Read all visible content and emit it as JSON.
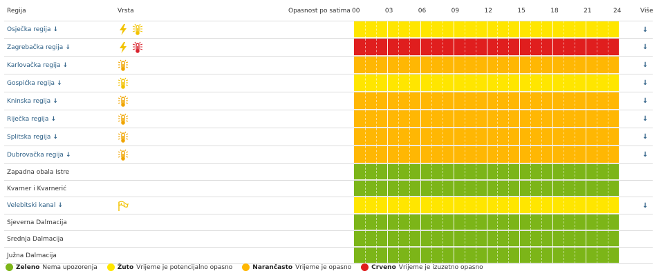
{
  "header": {
    "region_col": "Regija",
    "type_col": "Vrsta",
    "hourly_col": "Opasnost po satima",
    "hours": [
      "00",
      "03",
      "06",
      "09",
      "12",
      "15",
      "18",
      "21",
      "24"
    ],
    "more_col": "Više"
  },
  "colors": {
    "green": "#7cb518",
    "yellow": "#ffe600",
    "orange": "#ffb703",
    "red": "#e01e1e",
    "icon_yellow": "#f2c200",
    "icon_orange": "#f0a500",
    "icon_red": "#d9232e"
  },
  "more_arrow": "↓",
  "rows": [
    {
      "name": "Osječka regija",
      "link": true,
      "level": "yellow",
      "icons": [
        {
          "type": "lightning-icon",
          "color": "icon_yellow"
        },
        {
          "type": "thermometer-icon",
          "color": "icon_yellow"
        }
      ]
    },
    {
      "name": "Zagrebačka regija",
      "link": true,
      "level": "red",
      "icons": [
        {
          "type": "lightning-icon",
          "color": "icon_yellow"
        },
        {
          "type": "thermometer-icon",
          "color": "icon_red"
        }
      ]
    },
    {
      "name": "Karlovačka regija",
      "link": true,
      "level": "orange",
      "icons": [
        {
          "type": "thermometer-icon",
          "color": "icon_orange"
        }
      ]
    },
    {
      "name": "Gospićka regija",
      "link": true,
      "level": "yellow",
      "icons": [
        {
          "type": "thermometer-icon",
          "color": "icon_yellow"
        }
      ]
    },
    {
      "name": "Kninska regija",
      "link": true,
      "level": "orange",
      "icons": [
        {
          "type": "thermometer-icon",
          "color": "icon_orange"
        }
      ]
    },
    {
      "name": "Riječka regija",
      "link": true,
      "level": "orange",
      "icons": [
        {
          "type": "thermometer-icon",
          "color": "icon_orange"
        }
      ]
    },
    {
      "name": "Splitska regija",
      "link": true,
      "level": "orange",
      "icons": [
        {
          "type": "thermometer-icon",
          "color": "icon_orange"
        }
      ]
    },
    {
      "name": "Dubrovačka regija",
      "link": true,
      "level": "orange",
      "icons": [
        {
          "type": "thermometer-icon",
          "color": "icon_orange"
        }
      ]
    },
    {
      "name": "Zapadna obala Istre",
      "link": false,
      "level": "green",
      "icons": []
    },
    {
      "name": "Kvarner i Kvarnerić",
      "link": false,
      "level": "green",
      "icons": []
    },
    {
      "name": "Velebitski kanal",
      "link": true,
      "level": "yellow",
      "icons": [
        {
          "type": "wind-flag-icon",
          "color": "icon_yellow"
        }
      ]
    },
    {
      "name": "Sjeverna Dalmacija",
      "link": false,
      "level": "green",
      "icons": []
    },
    {
      "name": "Srednja Dalmacija",
      "link": false,
      "level": "green",
      "icons": []
    },
    {
      "name": "Južna Dalmacija",
      "link": false,
      "level": "green",
      "icons": []
    }
  ],
  "legend": [
    {
      "color": "green",
      "title": "Zeleno",
      "text": "Nema upozorenja"
    },
    {
      "color": "yellow",
      "title": "Žuto",
      "text": "Vrijeme je potencijalno opasno"
    },
    {
      "color": "orange",
      "title": "Narančasto",
      "text": "Vrijeme je opasno"
    },
    {
      "color": "red",
      "title": "Crveno",
      "text": "Vrijeme je izuzetno opasno"
    }
  ]
}
